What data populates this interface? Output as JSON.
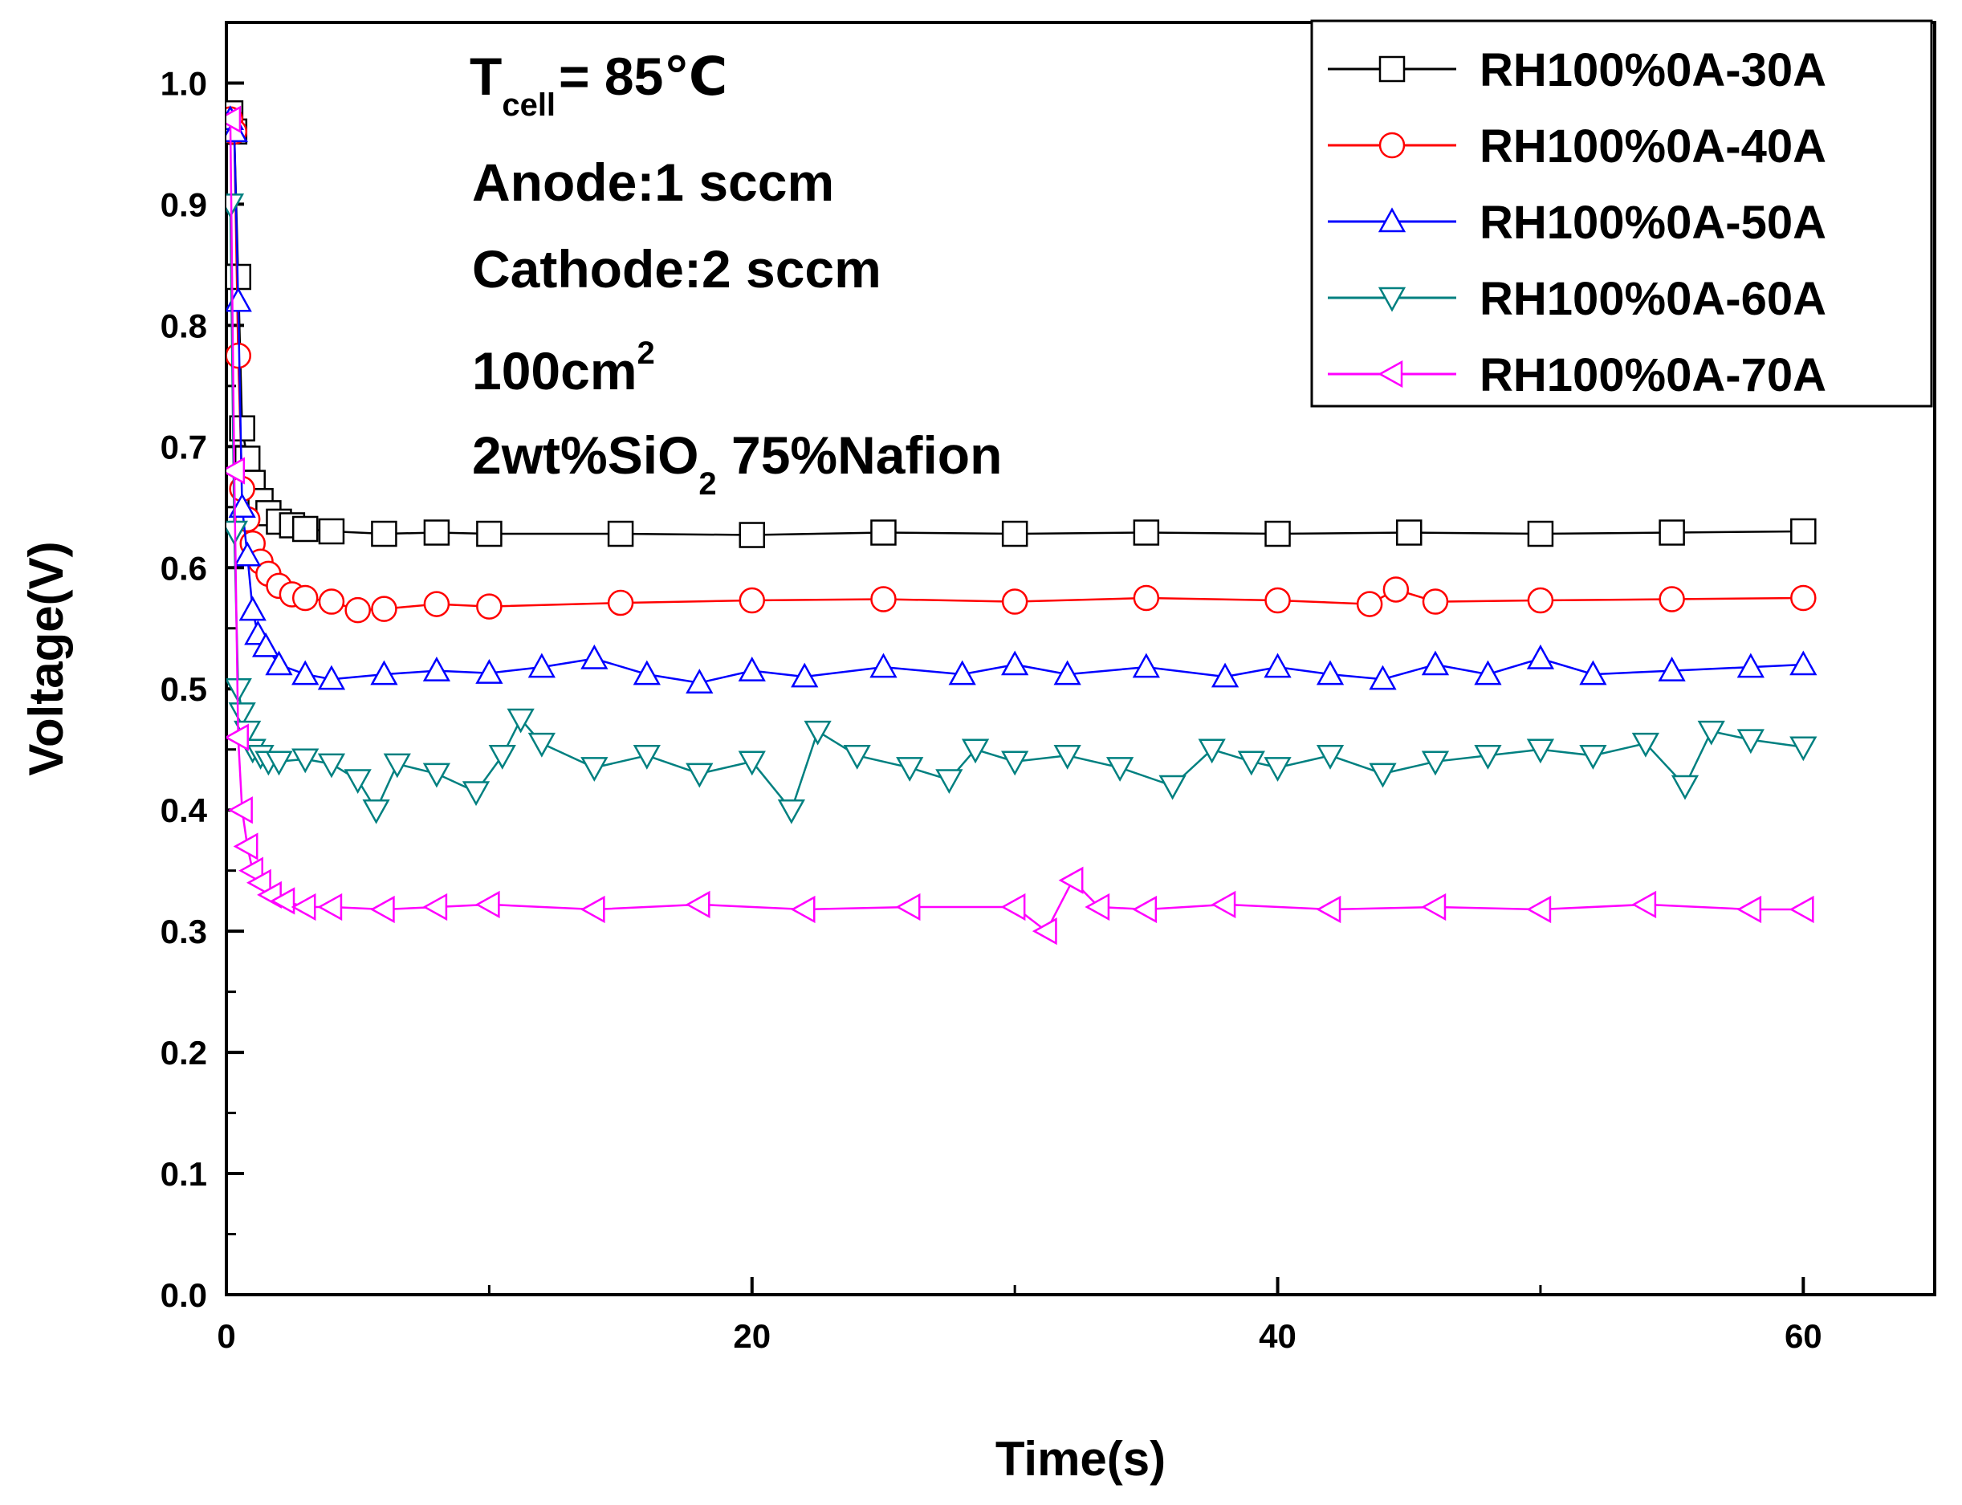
{
  "chart_data": {
    "type": "line",
    "xlabel": "Time(s)",
    "ylabel": "Voltage(V)",
    "xlim": [
      0,
      65
    ],
    "ylim": [
      0,
      1.05
    ],
    "xticks": [
      0,
      20,
      40,
      60
    ],
    "xtick_labels": [
      "0",
      "20",
      "40",
      "60"
    ],
    "yticks": [
      0,
      0.1,
      0.2,
      0.3,
      0.4,
      0.5,
      0.6,
      0.7,
      0.8,
      0.9,
      1.0
    ],
    "ytick_labels": [
      "0.0",
      "0.1",
      "0.2",
      "0.3",
      "0.4",
      "0.5",
      "0.6",
      "0.7",
      "0.8",
      "0.9",
      "1.0"
    ],
    "legend_position": "top-right",
    "annotations": {
      "tcell_prefix": "T",
      "tcell_sub": "cell",
      "tcell_value": "= 85℃",
      "anode": "Anode:1 sccm",
      "cathode": "Cathode:2 sccm",
      "area_value": "100cm",
      "area_sup": "2",
      "membrane_prefix": "2wt%SiO",
      "membrane_sub": "2",
      "membrane_suffix": " 75%Nafion"
    },
    "series": [
      {
        "name": "RH100%0A-30A",
        "color": "#000000",
        "marker": "square",
        "x": [
          0.15,
          0.3,
          0.45,
          0.6,
          0.8,
          1.0,
          1.3,
          1.6,
          2.0,
          2.5,
          3,
          4,
          6,
          8,
          10,
          15,
          20,
          25,
          30,
          35,
          40,
          45,
          50,
          55,
          60
        ],
        "y": [
          0.975,
          0.96,
          0.84,
          0.715,
          0.69,
          0.67,
          0.655,
          0.645,
          0.638,
          0.635,
          0.632,
          0.63,
          0.628,
          0.629,
          0.628,
          0.628,
          0.627,
          0.629,
          0.628,
          0.629,
          0.628,
          0.629,
          0.628,
          0.629,
          0.63
        ]
      },
      {
        "name": "RH100%0A-40A",
        "color": "#ff0000",
        "marker": "circle",
        "x": [
          0.15,
          0.3,
          0.45,
          0.6,
          0.8,
          1.0,
          1.3,
          1.6,
          2.0,
          2.5,
          3,
          4,
          5,
          6,
          8,
          10,
          15,
          20,
          25,
          30,
          35,
          40,
          43.5,
          44.5,
          46,
          50,
          55,
          60
        ],
        "y": [
          0.97,
          0.96,
          0.775,
          0.665,
          0.64,
          0.62,
          0.605,
          0.595,
          0.585,
          0.578,
          0.575,
          0.572,
          0.565,
          0.566,
          0.57,
          0.568,
          0.571,
          0.573,
          0.574,
          0.572,
          0.575,
          0.573,
          0.57,
          0.582,
          0.572,
          0.573,
          0.574,
          0.575
        ]
      },
      {
        "name": "RH100%0A-50A",
        "color": "#0000ff",
        "marker": "triangle-up",
        "x": [
          0.15,
          0.3,
          0.45,
          0.6,
          0.8,
          1.0,
          1.2,
          1.5,
          2,
          3,
          4,
          6,
          8,
          10,
          12,
          14,
          16,
          18,
          20,
          22,
          25,
          28,
          30,
          32,
          35,
          38,
          40,
          42,
          44,
          46,
          48,
          50,
          52,
          55,
          58,
          60
        ],
        "y": [
          0.97,
          0.96,
          0.82,
          0.65,
          0.61,
          0.565,
          0.545,
          0.535,
          0.52,
          0.512,
          0.508,
          0.512,
          0.515,
          0.513,
          0.518,
          0.525,
          0.512,
          0.505,
          0.515,
          0.51,
          0.518,
          0.512,
          0.52,
          0.512,
          0.518,
          0.51,
          0.518,
          0.512,
          0.508,
          0.52,
          0.512,
          0.525,
          0.512,
          0.515,
          0.518,
          0.52
        ]
      },
      {
        "name": "RH100%0A-60A",
        "color": "#008080",
        "marker": "triangle-down",
        "x": [
          0.15,
          0.3,
          0.45,
          0.6,
          0.8,
          1.0,
          1.3,
          1.6,
          2,
          3,
          4,
          5,
          5.7,
          6.5,
          8,
          9.5,
          10.5,
          11.2,
          12,
          14,
          16,
          18,
          20,
          21.5,
          22.5,
          24,
          26,
          27.5,
          28.5,
          30,
          32,
          34,
          36,
          37.5,
          39,
          40,
          42,
          44,
          46,
          48,
          50,
          52,
          54,
          55.5,
          56.5,
          58,
          60
        ],
        "y": [
          0.9,
          0.63,
          0.5,
          0.48,
          0.465,
          0.45,
          0.445,
          0.44,
          0.44,
          0.442,
          0.438,
          0.425,
          0.4,
          0.438,
          0.43,
          0.415,
          0.445,
          0.475,
          0.455,
          0.435,
          0.445,
          0.43,
          0.44,
          0.4,
          0.465,
          0.445,
          0.435,
          0.425,
          0.45,
          0.44,
          0.445,
          0.435,
          0.42,
          0.45,
          0.44,
          0.435,
          0.445,
          0.43,
          0.44,
          0.445,
          0.45,
          0.445,
          0.455,
          0.42,
          0.465,
          0.458,
          0.452
        ]
      },
      {
        "name": "RH100%0A-70A",
        "color": "#ff00ff",
        "marker": "triangle-left",
        "x": [
          0.15,
          0.3,
          0.45,
          0.6,
          0.8,
          1.0,
          1.3,
          1.7,
          2.2,
          3,
          4,
          6,
          8,
          10,
          14,
          18,
          22,
          26,
          30,
          31.2,
          32.2,
          33.2,
          35,
          38,
          42,
          46,
          50,
          54,
          58,
          60
        ],
        "y": [
          0.97,
          0.68,
          0.46,
          0.4,
          0.37,
          0.35,
          0.34,
          0.33,
          0.325,
          0.32,
          0.32,
          0.318,
          0.32,
          0.322,
          0.318,
          0.322,
          0.318,
          0.32,
          0.32,
          0.3,
          0.342,
          0.32,
          0.318,
          0.322,
          0.318,
          0.32,
          0.318,
          0.322,
          0.318,
          0.318
        ]
      }
    ]
  }
}
